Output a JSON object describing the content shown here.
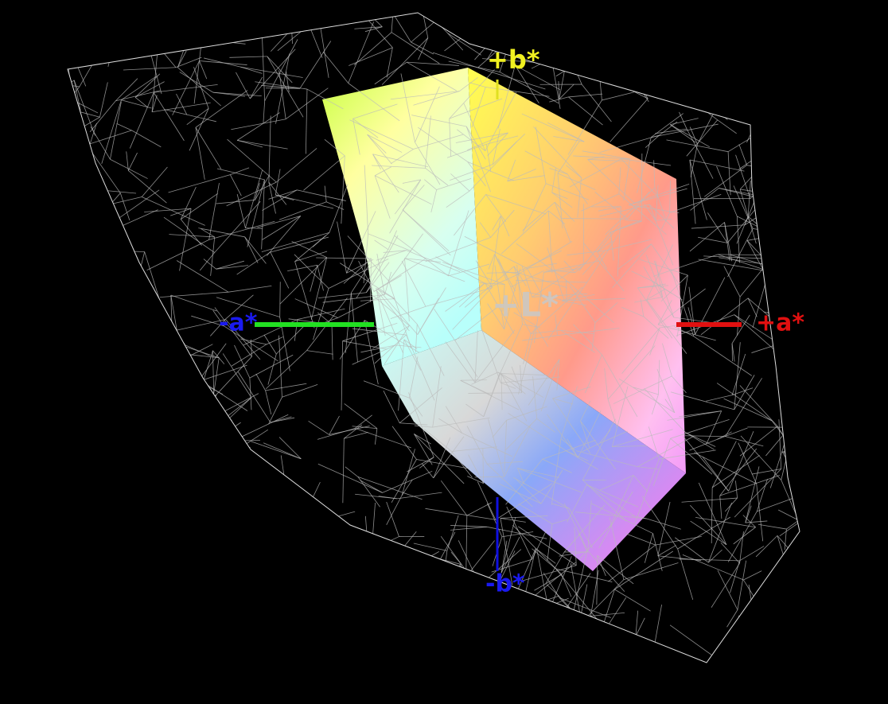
{
  "axis_labels": {
    "b_plus": "+b*",
    "a_minus": "-a*",
    "a_plus": "+a*",
    "b_minus": "-b*",
    "l_plus": "+L*"
  }
}
